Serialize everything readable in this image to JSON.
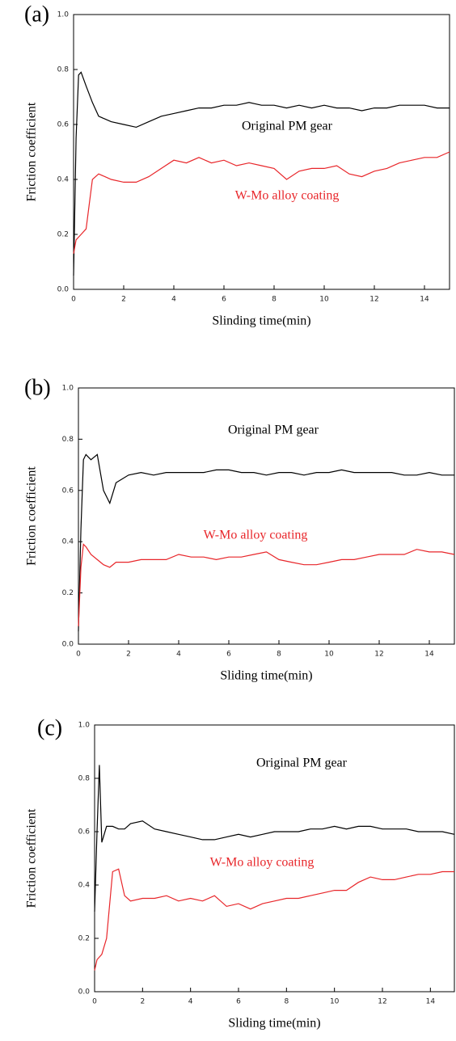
{
  "chart_data": [
    {
      "type": "line",
      "title": "(a)",
      "x_label": "Slinding time(min)",
      "y_label": "Friction coefficient",
      "xlim": [
        0,
        15
      ],
      "ylim": [
        0,
        1
      ],
      "xticks": [
        0,
        2,
        4,
        6,
        8,
        10,
        12,
        14
      ],
      "yticks": [
        {
          "value": 0,
          "label": "0.0"
        },
        0.2,
        0.4,
        0.6,
        0.8,
        {
          "value": 1,
          "label": "1.0"
        }
      ],
      "x": [
        0,
        0.1,
        0.2,
        0.3,
        0.5,
        0.75,
        1,
        1.25,
        1.5,
        2,
        2.5,
        3,
        3.5,
        4,
        4.5,
        5,
        5.5,
        6,
        6.5,
        7,
        7.5,
        8,
        8.5,
        9,
        9.5,
        10,
        10.5,
        11,
        11.5,
        12,
        12.5,
        13,
        13.5,
        14,
        14.5,
        15
      ],
      "series": [
        {
          "name": "Original PM gear",
          "color": "#000000",
          "values": [
            0.05,
            0.55,
            0.78,
            0.79,
            0.74,
            0.68,
            0.63,
            0.62,
            0.61,
            0.6,
            0.59,
            0.61,
            0.63,
            0.64,
            0.65,
            0.66,
            0.66,
            0.67,
            0.67,
            0.68,
            0.67,
            0.67,
            0.66,
            0.67,
            0.66,
            0.67,
            0.66,
            0.66,
            0.65,
            0.66,
            0.66,
            0.67,
            0.67,
            0.67,
            0.66,
            0.66
          ]
        },
        {
          "name": "W-Mo alloy coating",
          "color": "#e8262a",
          "values": [
            0.13,
            0.18,
            0.19,
            0.2,
            0.22,
            0.4,
            0.42,
            0.41,
            0.4,
            0.39,
            0.39,
            0.41,
            0.44,
            0.47,
            0.46,
            0.48,
            0.46,
            0.47,
            0.45,
            0.46,
            0.45,
            0.44,
            0.4,
            0.43,
            0.44,
            0.44,
            0.45,
            0.42,
            0.41,
            0.43,
            0.44,
            0.46,
            0.47,
            0.48,
            0.48,
            0.5
          ]
        }
      ]
    },
    {
      "type": "line",
      "title": "(b)",
      "x_label": "Sliding time(min)",
      "y_label": "Friction coefficient",
      "xlim": [
        0,
        15
      ],
      "ylim": [
        0,
        1
      ],
      "xticks": [
        0,
        2,
        4,
        6,
        8,
        10,
        12,
        14
      ],
      "yticks": [
        {
          "value": 0,
          "label": "0.0"
        },
        0.2,
        0.4,
        0.6,
        0.8,
        {
          "value": 1,
          "label": "1.0"
        }
      ],
      "x": [
        0,
        0.1,
        0.2,
        0.3,
        0.5,
        0.75,
        1,
        1.25,
        1.5,
        2,
        2.5,
        3,
        3.5,
        4,
        4.5,
        5,
        5.5,
        6,
        6.5,
        7,
        7.5,
        8,
        8.5,
        9,
        9.5,
        10,
        10.5,
        11,
        11.5,
        12,
        12.5,
        13,
        13.5,
        14,
        14.5,
        15
      ],
      "series": [
        {
          "name": "Original PM gear",
          "color": "#000000",
          "values": [
            0.05,
            0.45,
            0.72,
            0.74,
            0.72,
            0.74,
            0.6,
            0.55,
            0.63,
            0.66,
            0.67,
            0.66,
            0.67,
            0.67,
            0.67,
            0.67,
            0.68,
            0.68,
            0.67,
            0.67,
            0.66,
            0.67,
            0.67,
            0.66,
            0.67,
            0.67,
            0.68,
            0.67,
            0.67,
            0.67,
            0.67,
            0.66,
            0.66,
            0.67,
            0.66,
            0.66
          ]
        },
        {
          "name": "W-Mo alloy coating",
          "color": "#e8262a",
          "values": [
            0.07,
            0.3,
            0.39,
            0.38,
            0.35,
            0.33,
            0.31,
            0.3,
            0.32,
            0.32,
            0.33,
            0.33,
            0.33,
            0.35,
            0.34,
            0.34,
            0.33,
            0.34,
            0.34,
            0.35,
            0.36,
            0.33,
            0.32,
            0.31,
            0.31,
            0.32,
            0.33,
            0.33,
            0.34,
            0.35,
            0.35,
            0.35,
            0.37,
            0.36,
            0.36,
            0.35
          ]
        }
      ]
    },
    {
      "type": "line",
      "title": "(c)",
      "x_label": "Sliding time(min)",
      "y_label": "Friction coefficient",
      "xlim": [
        0,
        15
      ],
      "ylim": [
        0,
        1
      ],
      "xticks": [
        0,
        2,
        4,
        6,
        8,
        10,
        12,
        14
      ],
      "yticks": [
        {
          "value": 0,
          "label": "0.0"
        },
        0.2,
        0.4,
        0.6,
        0.8,
        {
          "value": 1,
          "label": "1.0"
        }
      ],
      "x": [
        0,
        0.1,
        0.2,
        0.3,
        0.5,
        0.75,
        1,
        1.25,
        1.5,
        2,
        2.5,
        3,
        3.5,
        4,
        4.5,
        5,
        5.5,
        6,
        6.5,
        7,
        7.5,
        8,
        8.5,
        9,
        9.5,
        10,
        10.5,
        11,
        11.5,
        12,
        12.5,
        13,
        13.5,
        14,
        14.5,
        15
      ],
      "series": [
        {
          "name": "Original PM gear",
          "color": "#000000",
          "values": [
            0.3,
            0.6,
            0.85,
            0.56,
            0.62,
            0.62,
            0.61,
            0.61,
            0.63,
            0.64,
            0.61,
            0.6,
            0.59,
            0.58,
            0.57,
            0.57,
            0.58,
            0.59,
            0.58,
            0.59,
            0.6,
            0.6,
            0.6,
            0.61,
            0.61,
            0.62,
            0.61,
            0.62,
            0.62,
            0.61,
            0.61,
            0.61,
            0.6,
            0.6,
            0.6,
            0.59
          ]
        },
        {
          "name": "W-Mo alloy coating",
          "color": "#e8262a",
          "values": [
            0.08,
            0.12,
            0.13,
            0.14,
            0.2,
            0.45,
            0.46,
            0.36,
            0.34,
            0.35,
            0.35,
            0.36,
            0.34,
            0.35,
            0.34,
            0.36,
            0.32,
            0.33,
            0.31,
            0.33,
            0.34,
            0.35,
            0.35,
            0.36,
            0.37,
            0.38,
            0.38,
            0.41,
            0.43,
            0.42,
            0.42,
            0.43,
            0.44,
            0.44,
            0.45,
            0.45
          ]
        }
      ]
    }
  ]
}
